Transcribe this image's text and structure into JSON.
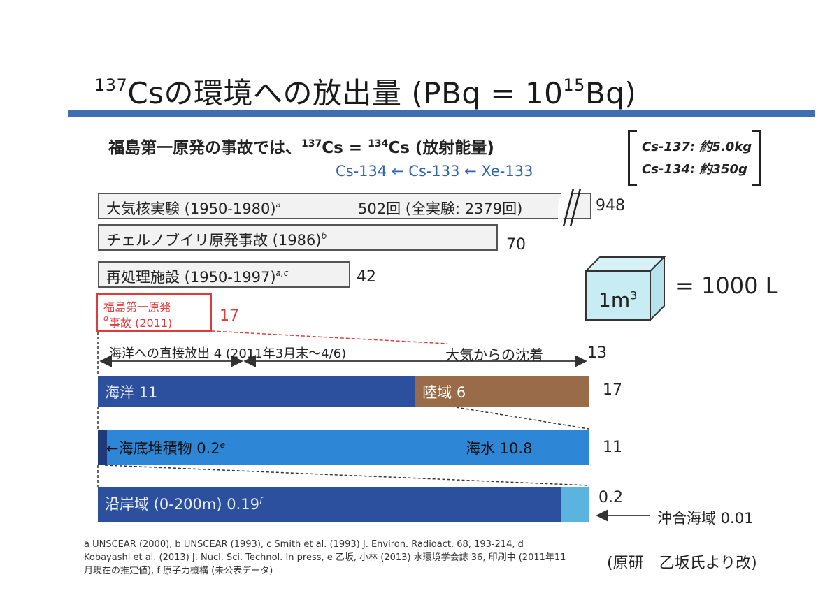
{
  "title": {
    "pre": "137",
    "text1": "Csの環境への放出量 (PBq = 10",
    "exp": "15",
    "text2": "Bq)"
  },
  "subtitle": {
    "prefix": "福島第一原発の事故では、",
    "iso1": "137",
    "mid": "Cs = ",
    "iso2": "134",
    "suffix": "Cs (放射能量)"
  },
  "chain": "Cs-134 ← Cs-133 ← Xe-133",
  "mass": {
    "line1": "Cs-137: 約5.0kg",
    "line2": "Cs-134: 約350g"
  },
  "cube": {
    "label": "1m",
    "exp": "3",
    "equals": "= 1000 L"
  },
  "chart_data": {
    "type": "bar",
    "unit": "PBq",
    "releases": [
      {
        "label": "大気核実験 (1950-1980)",
        "sup": "a",
        "extra": "502回 (全実験: 2379回)",
        "value": 948,
        "display": "948",
        "broken_axis": true
      },
      {
        "label": "チェルノブイリ原発事故 (1986)",
        "sup": "b",
        "value": 70,
        "display": "70"
      },
      {
        "label": "再処理施設 (1950-1997)",
        "sup": "a,c",
        "value": 42,
        "display": "42"
      },
      {
        "label_line1": "福島第一原発",
        "label_line2": "事故 (2011)",
        "sup": "d",
        "value": 17,
        "display": "17"
      }
    ],
    "breakdown": {
      "direct": {
        "label": "海洋への直接放出 4 (2011年3月末～4/6)",
        "value": 4
      },
      "deposition": {
        "label": "大気からの沈着",
        "value": 13,
        "display": "13"
      },
      "level1": {
        "total": "17",
        "segments": [
          {
            "label": "海洋 11",
            "value": 11,
            "color": "#2c4f9e"
          },
          {
            "label": "陸域 6",
            "value": 6,
            "color": "#9a6b48"
          }
        ]
      },
      "level2": {
        "total": "11",
        "segments": [
          {
            "label": "←海底堆積物 0.2",
            "sup": "e",
            "value": 0.2,
            "color": "#1f3a78"
          },
          {
            "label": "海水 10.8",
            "value": 10.8,
            "color": "#2e86d6"
          }
        ]
      },
      "level3": {
        "total": "0.2",
        "segments": [
          {
            "label": "沿岸域 (0-200m) 0.19",
            "sup": "f",
            "value": 0.19,
            "color": "#2c4f9e"
          },
          {
            "label": "沖合海域 0.01",
            "value": 0.01,
            "color": "#5bb3df"
          }
        ]
      }
    }
  },
  "references": "a UNSCEAR (2000), b UNSCEAR (1993), c Smith et al. (1993) J. Environ. Radioact. 68, 193-214, d Kobayashi et al. (2013) J. Nucl. Sci. Technol. In press, e 乙坂, 小林 (2013) 水環境学会誌 36, 印刷中 (2011年11月現在の推定値), f 原子力機構 (未公表データ)",
  "credit": "(原研　乙坂氏より改)"
}
